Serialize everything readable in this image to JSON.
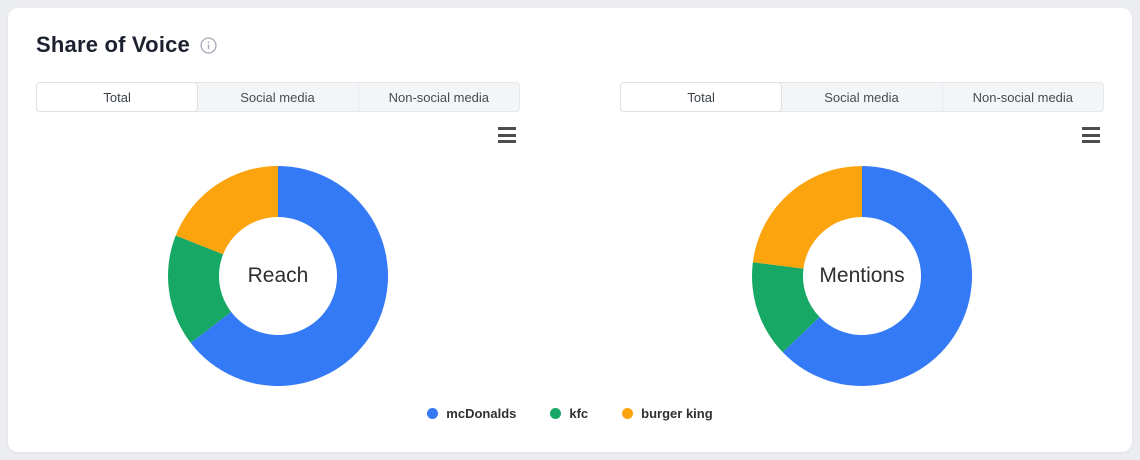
{
  "panel": {
    "title": "Share of Voice",
    "page_background": "#ecedf1",
    "panel_background": "#ffffff"
  },
  "tabs": {
    "labels": [
      "Total",
      "Social media",
      "Non-social media"
    ],
    "active": "Total"
  },
  "legend": {
    "items": [
      {
        "label": "mcDonalds",
        "color": "#3479F6"
      },
      {
        "label": "kfc",
        "color": "#17A865"
      },
      {
        "label": "burger king",
        "color": "#FCA40D"
      }
    ]
  },
  "icons": {
    "info": "info-icon",
    "chart_menu": "hamburger-menu-icon"
  },
  "chart_data": [
    {
      "type": "pie",
      "donut": true,
      "center_label": "Reach",
      "labels": [
        "mcDonalds",
        "kfc",
        "burger king"
      ],
      "values": [
        64.6,
        16.4,
        19.0
      ],
      "unit": "percent",
      "colors": [
        "#3479F6",
        "#17A865",
        "#FCA40D"
      ],
      "start_angle": 0,
      "direction": "clockwise",
      "legend_position": "bottom",
      "tabs": [
        "Total",
        "Social media",
        "Non-social media"
      ],
      "active_tab": "Total"
    },
    {
      "type": "pie",
      "donut": true,
      "center_label": "Mentions",
      "labels": [
        "mcDonalds",
        "kfc",
        "burger king"
      ],
      "values": [
        62.8,
        14.2,
        23.0
      ],
      "unit": "percent",
      "colors": [
        "#3479F6",
        "#17A865",
        "#FCA40D"
      ],
      "start_angle": 0,
      "direction": "clockwise",
      "legend_position": "bottom",
      "tabs": [
        "Total",
        "Social media",
        "Non-social media"
      ],
      "active_tab": "Total"
    }
  ]
}
